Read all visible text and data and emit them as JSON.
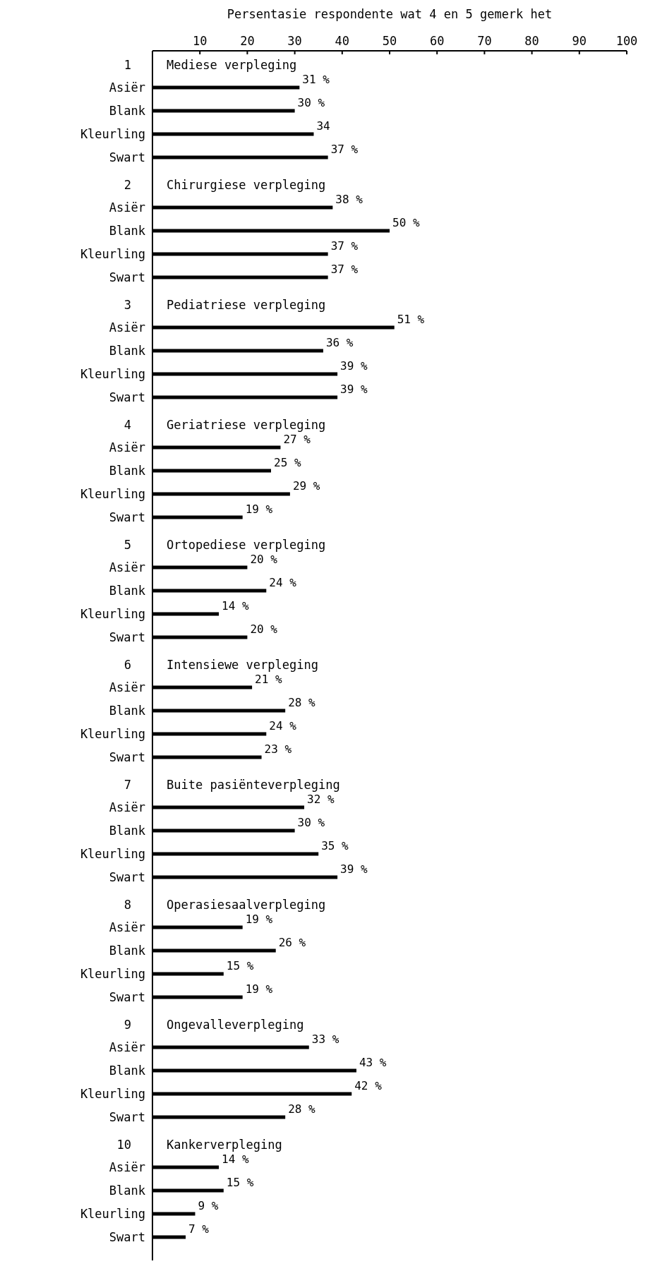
{
  "chart_data": {
    "type": "bar",
    "orientation": "horizontal",
    "xlabel": "Persentasie respondente wat 4 en 5 gemerk het",
    "xlim": [
      0,
      100
    ],
    "xticks": [
      10,
      20,
      30,
      40,
      50,
      60,
      70,
      80,
      90,
      100
    ],
    "categories": [
      "1 Mediese verpleging",
      "2 Chirurgiese verpleging",
      "3 Pediatriese verpleging",
      "4 Geriatriese verpleging",
      "5 Ortopediese verpleging",
      "6 Intensiewe verpleging",
      "7 Buite pasiënteverpleging",
      "8 Operasiesaalverpleging",
      "9 Ongevalleverpleging",
      "10 Kankerverpleging"
    ],
    "series": [
      {
        "name": "Asiër",
        "color": "#000000",
        "values": [
          31,
          38,
          51,
          27,
          20,
          21,
          32,
          19,
          33,
          14
        ],
        "value_labels": [
          "31 %",
          "38 %",
          "51 %",
          "27 %",
          "20 %",
          "21 %",
          "32 %",
          "19 %",
          "33 %",
          "14 %"
        ]
      },
      {
        "name": "Blank",
        "color": "#000000",
        "values": [
          30,
          50,
          36,
          25,
          24,
          28,
          30,
          26,
          43,
          15
        ],
        "value_labels": [
          "30 %",
          "50 %",
          "36 %",
          "25 %",
          "24 %",
          "28 %",
          "30 %",
          "26 %",
          "43 %",
          "15 %"
        ]
      },
      {
        "name": "Kleurling",
        "color": "#000000",
        "values": [
          34,
          37,
          39,
          29,
          14,
          24,
          35,
          15,
          42,
          9
        ],
        "value_labels": [
          "34",
          "37 %",
          "39 %",
          "29 %",
          "14 %",
          "24 %",
          "35 %",
          "15 %",
          "42 %",
          "9 %"
        ]
      },
      {
        "name": "Swart",
        "color": "#000000",
        "values": [
          37,
          37,
          39,
          19,
          20,
          23,
          39,
          19,
          28,
          7
        ],
        "value_labels": [
          "37 %",
          "37 %",
          "39 %",
          "19 %",
          "20 %",
          "23 %",
          "39 %",
          "19 %",
          "28 %",
          "7 %"
        ]
      }
    ]
  }
}
